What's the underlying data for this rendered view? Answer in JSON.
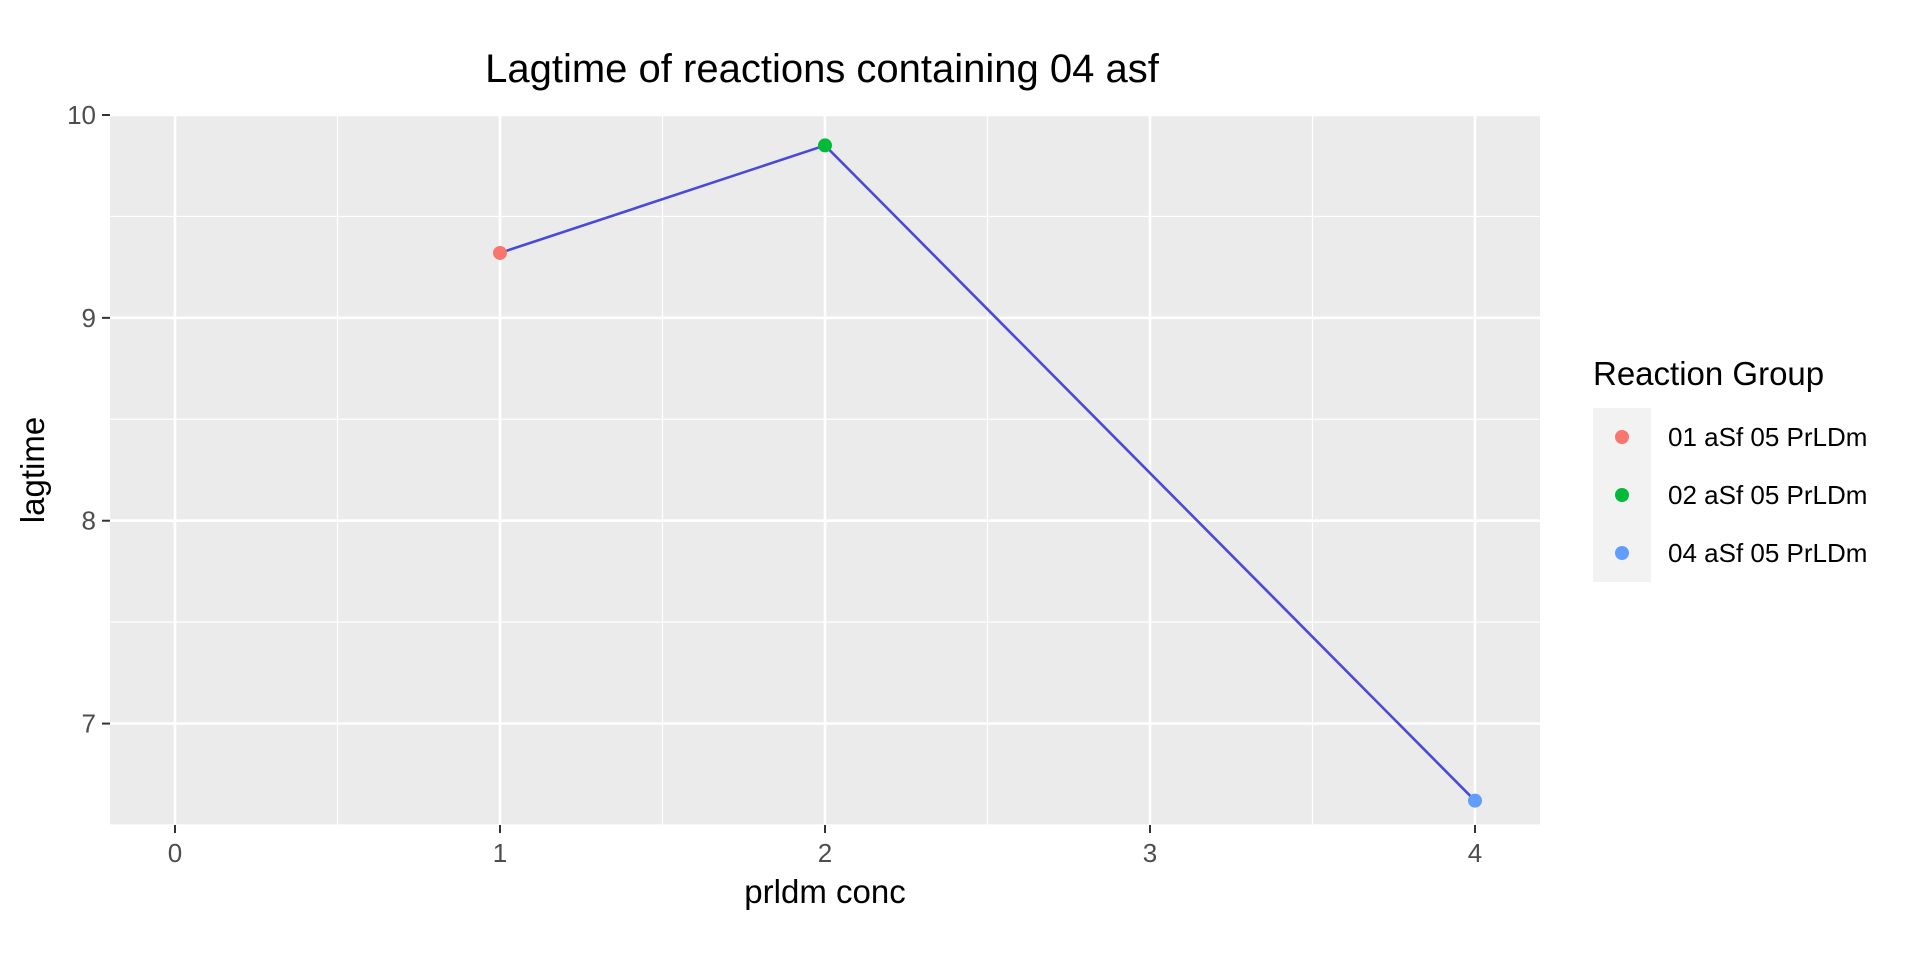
{
  "chart_data": {
    "type": "line",
    "title": "Lagtime of reactions containing 04 asf",
    "xlabel": "prldm conc",
    "ylabel": "lagtime",
    "xlim": [
      -0.2,
      4.2
    ],
    "ylim": [
      6.5,
      10.0
    ],
    "x_ticks": [
      0,
      1,
      2,
      3,
      4
    ],
    "x_tick_labels": [
      "0",
      "1",
      "2",
      "3",
      "4"
    ],
    "y_ticks": [
      7,
      8,
      9,
      10
    ],
    "y_tick_labels": [
      "7",
      "8",
      "9",
      "10"
    ],
    "grid": true,
    "line_color": "#4A4AD9",
    "points": [
      {
        "x": 1,
        "y": 9.32,
        "group": "01 aSf 05 PrLDm",
        "color": "#F8766D"
      },
      {
        "x": 2,
        "y": 9.85,
        "group": "02 aSf 05 PrLDm",
        "color": "#00BA38"
      },
      {
        "x": 4,
        "y": 6.62,
        "group": "04 aSf 05 PrLDm",
        "color": "#619CFF"
      }
    ],
    "legend": {
      "title": "Reaction Group",
      "position": "right",
      "items": [
        {
          "label": "01 aSf 05 PrLDm",
          "color": "#F8766D"
        },
        {
          "label": "02 aSf 05 PrLDm",
          "color": "#00BA38"
        },
        {
          "label": "04 aSf 05 PrLDm",
          "color": "#619CFF"
        }
      ]
    }
  }
}
